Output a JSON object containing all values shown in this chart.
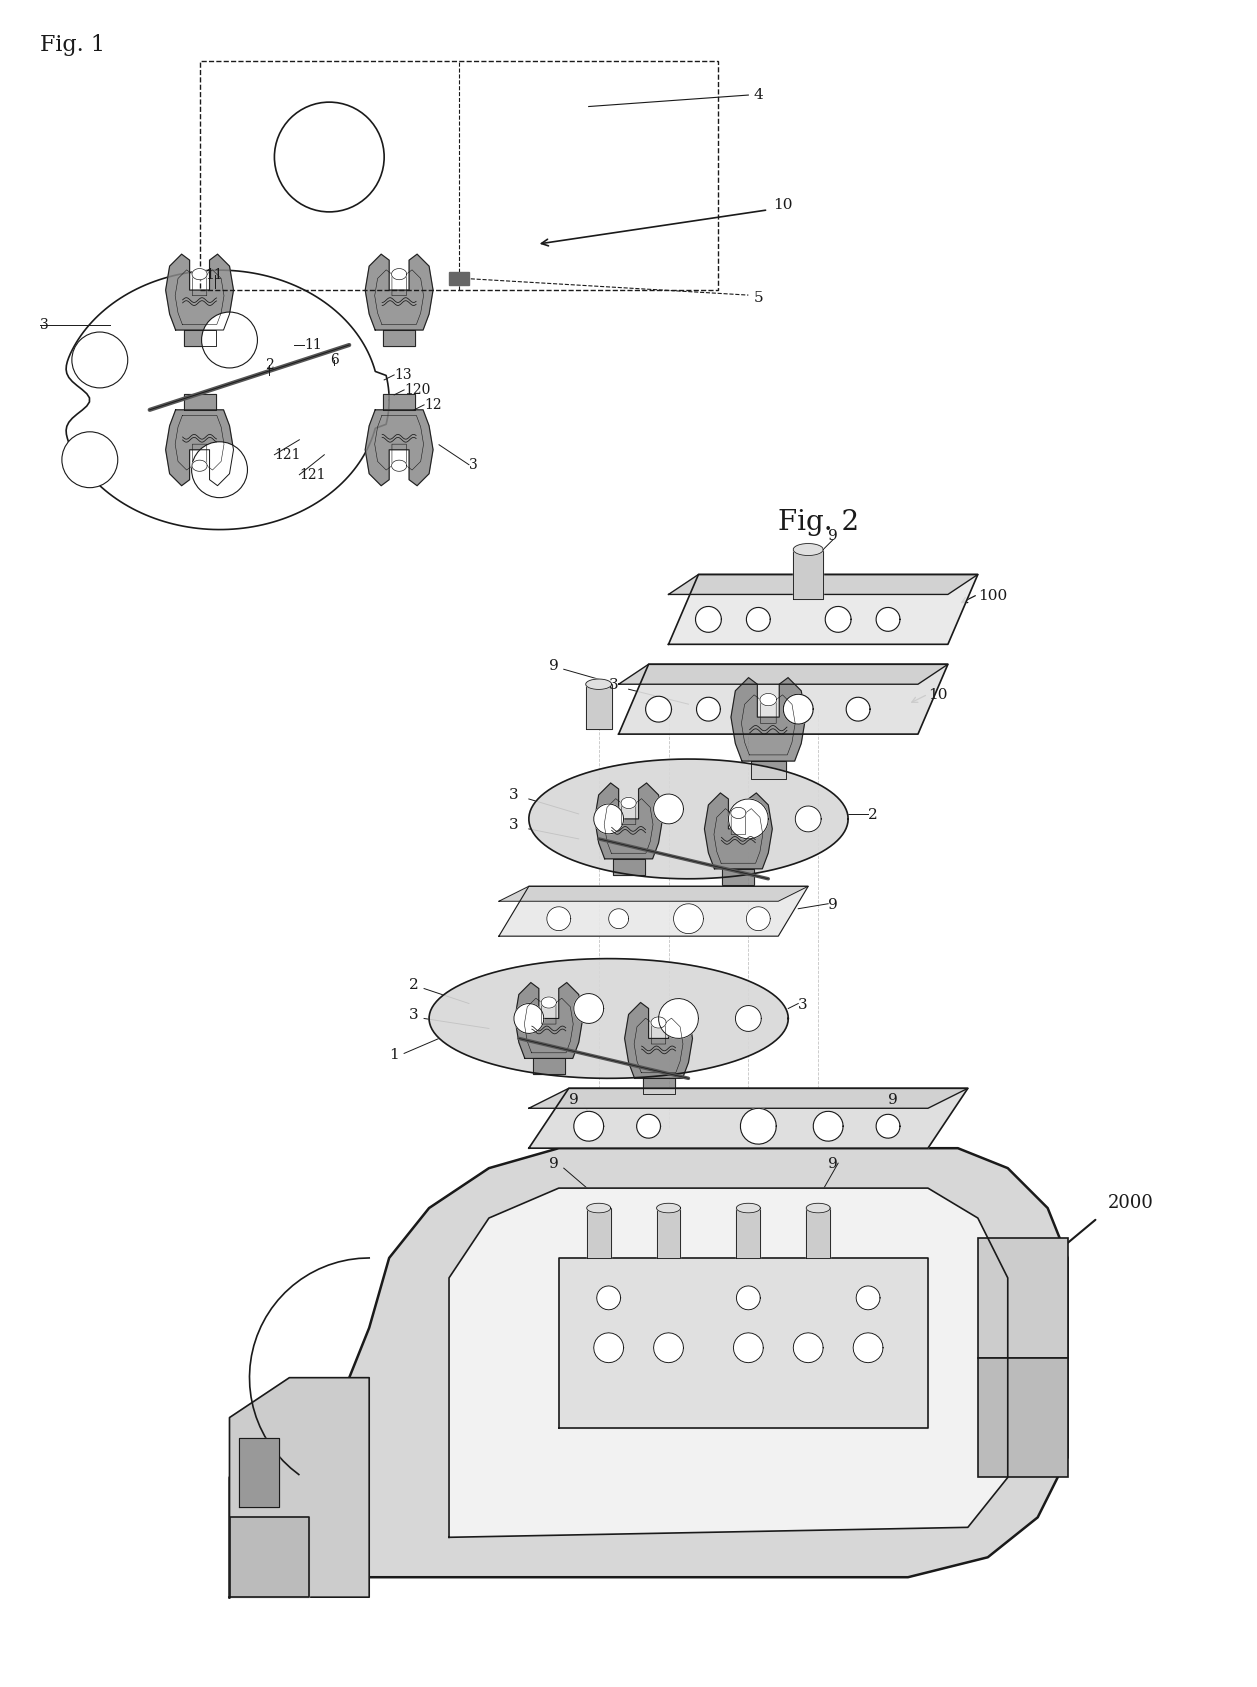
{
  "background_color": "#ffffff",
  "line_color": "#1a1a1a",
  "fig_width": 12.4,
  "fig_height": 16.71,
  "title_fig1": "Fig. 1",
  "title_fig2": "Fig. 2",
  "label_2000": "2000",
  "label_100": "100",
  "label_10": "10",
  "label_9": "9",
  "label_3": "3",
  "label_2": "2",
  "label_1": "1"
}
